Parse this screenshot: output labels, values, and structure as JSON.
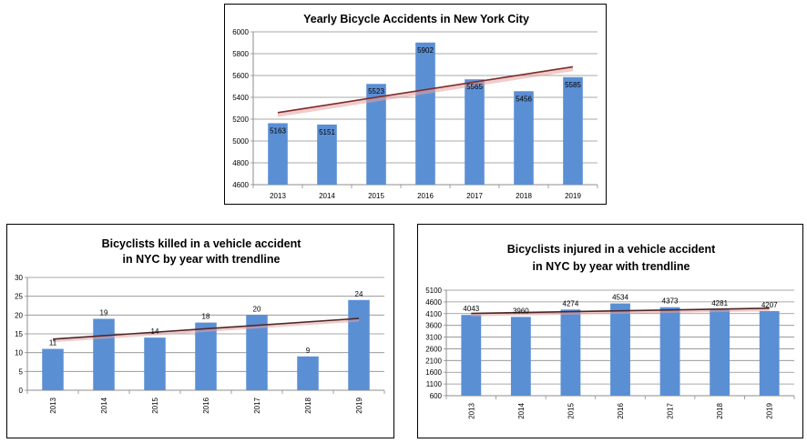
{
  "chart_data": [
    {
      "type": "bar",
      "title_lines": [
        "Yearly Bicycle Accidents in New York City"
      ],
      "categories": [
        "2013",
        "2014",
        "2015",
        "2016",
        "2017",
        "2018",
        "2019"
      ],
      "values": [
        5163,
        5151,
        5523,
        5902,
        5565,
        5456,
        5585
      ],
      "ylim": [
        4600,
        6000
      ],
      "yticks": [
        "4600",
        "4800",
        "5000",
        "5200",
        "5400",
        "5600",
        "5800",
        "6000"
      ],
      "data_labels": [
        "5163",
        "5151",
        "5523",
        "5902",
        "5565",
        "5456",
        "5585"
      ],
      "trendline": [
        5260,
        5680
      ],
      "grid": true,
      "bar_color": "#5B8FD4",
      "trend_color": "#7B2C2C"
    },
    {
      "type": "bar",
      "title_lines": [
        "Bicyclists killed in a vehicle accident",
        "in NYC  by year with trendline"
      ],
      "categories": [
        "2013",
        "2014",
        "2015",
        "2016",
        "2017",
        "2018",
        "2019"
      ],
      "values": [
        11,
        19,
        14,
        18,
        20,
        9,
        24
      ],
      "ylim": [
        0,
        30
      ],
      "yticks": [
        "0",
        "5",
        "10",
        "15",
        "20",
        "25",
        "30"
      ],
      "data_labels": [
        "11",
        "19",
        "14",
        "18",
        "20",
        "9",
        "24"
      ],
      "trendline": [
        13.6,
        19.1
      ],
      "grid": true,
      "bar_color": "#5B8FD4",
      "trend_color": "#4A2828"
    },
    {
      "type": "bar",
      "title_lines": [
        "Bicyclists injured in a vehicle accident",
        "in NYC by year with trendline"
      ],
      "categories": [
        "2013",
        "2014",
        "2015",
        "2016",
        "2017",
        "2018",
        "2019"
      ],
      "values": [
        4043,
        3960,
        4274,
        4534,
        4373,
        4281,
        4207
      ],
      "ylim": [
        600,
        5100
      ],
      "yticks": [
        "600",
        "1100",
        "1600",
        "2100",
        "2600",
        "3100",
        "3600",
        "4100",
        "4600",
        "5100"
      ],
      "data_labels": [
        "4043",
        "3960",
        "4274",
        "4534",
        "4373",
        "4281",
        "4207"
      ],
      "trendline": [
        4110,
        4330
      ],
      "grid": true,
      "bar_color": "#5B8FD4",
      "trend_color": "#4A2828"
    }
  ]
}
